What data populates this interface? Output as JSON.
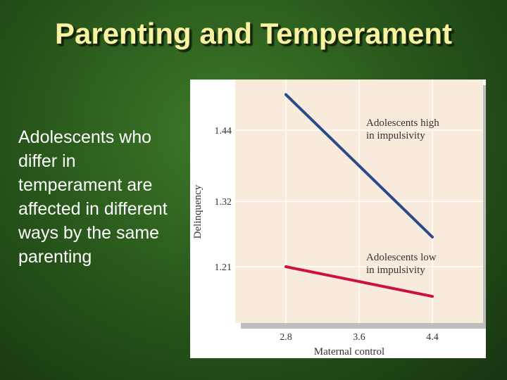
{
  "slide": {
    "title": "Parenting and Temperament",
    "body": "Adolescents who differ in temperament are affected in different ways by the same parenting"
  },
  "colors": {
    "title": "#f7f3a0",
    "plot_bg": "#f9ebdc",
    "series_high": "#2b4a8c",
    "series_low": "#d0103c"
  },
  "chart_data": {
    "type": "line",
    "xlabel": "Maternal control",
    "ylabel": "Delinquency",
    "x": [
      2.8,
      3.6,
      4.4
    ],
    "x_ticks": [
      "2.8",
      "3.6",
      "4.4"
    ],
    "y_ticks": [
      "1.44",
      "1.32",
      "1.21"
    ],
    "series": [
      {
        "name": "Adolescents high in impulsivity",
        "label_lines": [
          "Adolescents high",
          "in impulsivity"
        ],
        "x": [
          2.8,
          4.4
        ],
        "values": [
          1.5,
          1.26
        ]
      },
      {
        "name": "Adolescents low in impulsivity",
        "label_lines": [
          "Adolescents low",
          "in impulsivity"
        ],
        "x": [
          2.8,
          4.4
        ],
        "values": [
          1.21,
          1.16
        ]
      }
    ],
    "grid": true
  }
}
